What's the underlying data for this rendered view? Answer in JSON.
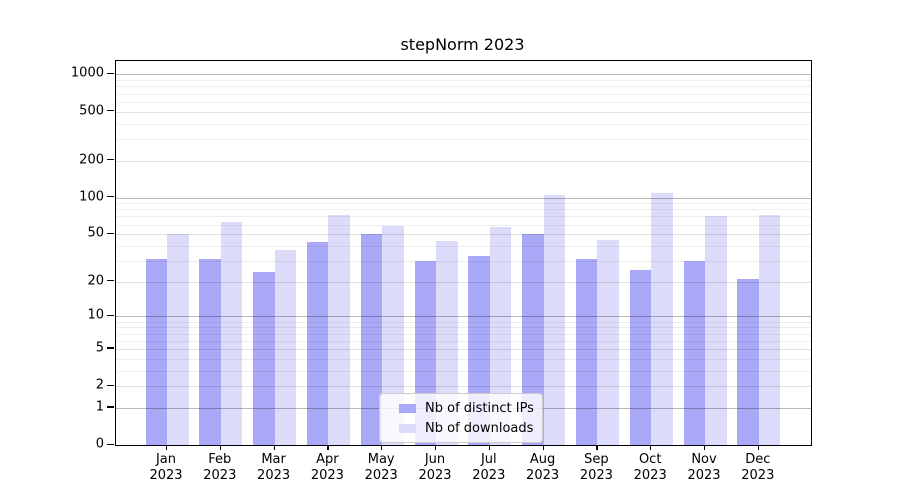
{
  "title": "stepNorm 2023",
  "chart_data": {
    "type": "bar",
    "title": "stepNorm 2023",
    "year": "2023",
    "months": [
      "Jan",
      "Feb",
      "Mar",
      "Apr",
      "May",
      "Jun",
      "Jul",
      "Aug",
      "Sep",
      "Oct",
      "Nov",
      "Dec"
    ],
    "categories": [
      "Jan 2023",
      "Feb 2023",
      "Mar 2023",
      "Apr 2023",
      "May 2023",
      "Jun 2023",
      "Jul 2023",
      "Aug 2023",
      "Sep 2023",
      "Oct 2023",
      "Nov 2023",
      "Dec 2023"
    ],
    "series": [
      {
        "name": "Nb of distinct IPs",
        "color": "#a9a9f7",
        "values": [
          31,
          31,
          24,
          43,
          50,
          30,
          33,
          50,
          31,
          25,
          30,
          21
        ]
      },
      {
        "name": "Nb of downloads",
        "color": "#dcdcfa",
        "values": [
          50,
          63,
          37,
          72,
          58,
          44,
          57,
          105,
          45,
          109,
          70,
          72
        ]
      }
    ],
    "yscale": "log1p",
    "ylim": [
      0,
      1320
    ],
    "y_ticks": [
      0,
      1,
      2,
      5,
      10,
      20,
      50,
      100,
      200,
      500,
      1000
    ],
    "y_tick_labels": [
      "0",
      "1",
      "2",
      "5",
      "10",
      "20",
      "50",
      "100",
      "200",
      "500",
      "1000"
    ],
    "y_major_gridlines": [
      1,
      10,
      100,
      1000
    ],
    "y_minor_gridlines": [
      3,
      4,
      6,
      7,
      8,
      9,
      30,
      40,
      60,
      70,
      80,
      90,
      300,
      400,
      600,
      700,
      800,
      900
    ],
    "grid": "on",
    "legend_position": "lower center"
  },
  "legend": {
    "items": [
      {
        "label": "Nb of distinct IPs"
      },
      {
        "label": "Nb of downloads"
      }
    ]
  }
}
